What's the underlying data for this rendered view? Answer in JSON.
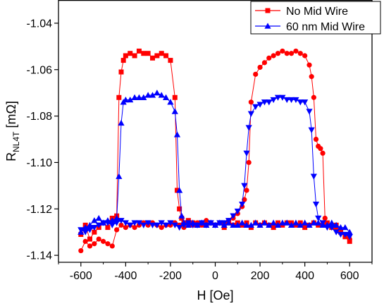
{
  "chart_data": {
    "type": "scatter",
    "xlabel": "H [Oe]",
    "ylabel": {
      "main": "R",
      "sub": "NL4T",
      "unit": " [mΩ]"
    },
    "xlim": [
      -700,
      700
    ],
    "ylim": [
      -1.143,
      -1.03
    ],
    "x_ticks": [
      "-600",
      "-400",
      "-200",
      "0",
      "200",
      "400",
      "600"
    ],
    "y_ticks": [
      "-1.04",
      "-1.06",
      "-1.08",
      "-1.10",
      "-1.12",
      "-1.14"
    ],
    "grid": false,
    "legend_position": "top-right",
    "series": [
      {
        "name": "No Mid Wire",
        "color": "#ff0000",
        "marker": "square",
        "branches": [
          {
            "label": "sweep-up",
            "x": [
              -600,
              -580,
              -560,
              -540,
              -520,
              -500,
              -480,
              -460,
              -440,
              -430,
              -420,
              -410,
              -400,
              -380,
              -360,
              -340,
              -320,
              -300,
              -280,
              -260,
              -240,
              -220,
              -200,
              -180,
              -170,
              -160,
              -150,
              -140,
              -120,
              -100,
              -80,
              -60,
              -40,
              -20,
              0,
              20,
              40,
              60,
              80,
              100,
              120,
              140,
              160,
              180,
              200,
              220,
              240,
              260,
              280,
              300,
              320,
              340,
              360,
              380,
              400,
              420,
              440,
              460,
              480,
              500,
              520,
              540,
              560,
              580,
              600
            ],
            "y": [
              -1.131,
              -1.127,
              -1.133,
              -1.13,
              -1.128,
              -1.126,
              -1.128,
              -1.124,
              -1.123,
              -1.072,
              -1.061,
              -1.056,
              -1.054,
              -1.053,
              -1.054,
              -1.052,
              -1.053,
              -1.053,
              -1.055,
              -1.054,
              -1.053,
              -1.054,
              -1.056,
              -1.072,
              -1.112,
              -1.12,
              -1.124,
              -1.126,
              -1.125,
              -1.126,
              -1.127,
              -1.126,
              -1.127,
              -1.126,
              -1.127,
              -1.126,
              -1.128,
              -1.126,
              -1.127,
              -1.126,
              -1.127,
              -1.126,
              -1.128,
              -1.126,
              -1.127,
              -1.126,
              -1.127,
              -1.128,
              -1.126,
              -1.127,
              -1.126,
              -1.126,
              -1.127,
              -1.126,
              -1.128,
              -1.127,
              -1.126,
              -1.127,
              -1.127,
              -1.126,
              -1.128,
              -1.127,
              -1.13,
              -1.132,
              -1.134
            ]
          },
          {
            "label": "sweep-down",
            "x": [
              600,
              580,
              560,
              540,
              520,
              500,
              490,
              480,
              470,
              460,
              450,
              440,
              430,
              420,
              400,
              380,
              360,
              340,
              320,
              300,
              280,
              260,
              240,
              220,
              200,
              180,
              160,
              150,
              140,
              130,
              120,
              100,
              80,
              60,
              40,
              20,
              0,
              -20,
              -40,
              -60,
              -80,
              -100,
              -120,
              -140,
              -160,
              -180,
              -200,
              -220,
              -240,
              -260,
              -280,
              -300,
              -320,
              -340,
              -360,
              -380,
              -400,
              -420,
              -440,
              -460,
              -480,
              -500,
              -520,
              -540,
              -560,
              -580,
              -600
            ],
            "y": [
              -1.133,
              -1.131,
              -1.13,
              -1.129,
              -1.127,
              -1.127,
              -1.124,
              -1.096,
              -1.094,
              -1.093,
              -1.09,
              -1.072,
              -1.063,
              -1.058,
              -1.054,
              -1.053,
              -1.052,
              -1.053,
              -1.053,
              -1.052,
              -1.053,
              -1.054,
              -1.055,
              -1.057,
              -1.059,
              -1.062,
              -1.074,
              -1.1,
              -1.112,
              -1.116,
              -1.119,
              -1.122,
              -1.124,
              -1.125,
              -1.126,
              -1.126,
              -1.127,
              -1.126,
              -1.125,
              -1.127,
              -1.126,
              -1.127,
              -1.126,
              -1.128,
              -1.127,
              -1.126,
              -1.127,
              -1.127,
              -1.128,
              -1.127,
              -1.126,
              -1.127,
              -1.126,
              -1.127,
              -1.128,
              -1.127,
              -1.128,
              -1.127,
              -1.129,
              -1.136,
              -1.135,
              -1.134,
              -1.133,
              -1.135,
              -1.136,
              -1.134,
              -1.138
            ]
          }
        ]
      },
      {
        "name": "60 nm Mid Wire",
        "color": "#0000ff",
        "marker": "triangle",
        "branches": [
          {
            "label": "sweep-up",
            "x": [
              -600,
              -580,
              -560,
              -540,
              -520,
              -500,
              -480,
              -460,
              -440,
              -430,
              -420,
              -410,
              -400,
              -380,
              -360,
              -340,
              -320,
              -300,
              -280,
              -260,
              -240,
              -220,
              -200,
              -180,
              -170,
              -160,
              -150,
              -140,
              -120,
              -100,
              -80,
              -60,
              -40,
              -20,
              0,
              20,
              40,
              60,
              80,
              100,
              120,
              140,
              160,
              180,
              200,
              220,
              240,
              260,
              280,
              300,
              320,
              340,
              360,
              380,
              400,
              420,
              440,
              460,
              480,
              500,
              520,
              540,
              560,
              580,
              600
            ],
            "y": [
              -1.13,
              -1.128,
              -1.127,
              -1.125,
              -1.124,
              -1.126,
              -1.125,
              -1.125,
              -1.124,
              -1.106,
              -1.083,
              -1.074,
              -1.073,
              -1.073,
              -1.072,
              -1.072,
              -1.072,
              -1.071,
              -1.071,
              -1.07,
              -1.071,
              -1.072,
              -1.074,
              -1.078,
              -1.088,
              -1.112,
              -1.123,
              -1.126,
              -1.127,
              -1.126,
              -1.127,
              -1.126,
              -1.127,
              -1.126,
              -1.127,
              -1.126,
              -1.127,
              -1.126,
              -1.127,
              -1.127,
              -1.126,
              -1.127,
              -1.127,
              -1.126,
              -1.127,
              -1.126,
              -1.127,
              -1.126,
              -1.127,
              -1.126,
              -1.126,
              -1.127,
              -1.126,
              -1.127,
              -1.126,
              -1.127,
              -1.126,
              -1.126,
              -1.127,
              -1.127,
              -1.126,
              -1.127,
              -1.128,
              -1.128,
              -1.13
            ]
          },
          {
            "label": "sweep-down",
            "x": [
              600,
              580,
              560,
              540,
              520,
              500,
              480,
              460,
              450,
              440,
              430,
              420,
              400,
              380,
              360,
              340,
              320,
              300,
              280,
              260,
              240,
              220,
              200,
              180,
              160,
              150,
              140,
              130,
              120,
              100,
              80,
              60,
              40,
              20,
              0,
              -20,
              -40,
              -60,
              -80,
              -100,
              -120,
              -140,
              -160,
              -180,
              -200,
              -220,
              -240,
              -260,
              -280,
              -300,
              -320,
              -340,
              -360,
              -380,
              -400,
              -420,
              -440,
              -460,
              -480,
              -500,
              -520,
              -540,
              -560,
              -580,
              -600
            ],
            "y": [
              -1.132,
              -1.131,
              -1.131,
              -1.13,
              -1.128,
              -1.128,
              -1.126,
              -1.124,
              -1.118,
              -1.106,
              -1.086,
              -1.078,
              -1.074,
              -1.074,
              -1.073,
              -1.073,
              -1.073,
              -1.072,
              -1.072,
              -1.073,
              -1.074,
              -1.074,
              -1.075,
              -1.076,
              -1.079,
              -1.085,
              -1.096,
              -1.11,
              -1.118,
              -1.121,
              -1.123,
              -1.125,
              -1.126,
              -1.126,
              -1.127,
              -1.126,
              -1.127,
              -1.126,
              -1.127,
              -1.127,
              -1.126,
              -1.127,
              -1.128,
              -1.127,
              -1.126,
              -1.127,
              -1.126,
              -1.127,
              -1.127,
              -1.126,
              -1.127,
              -1.126,
              -1.126,
              -1.127,
              -1.126,
              -1.125,
              -1.126,
              -1.127,
              -1.126,
              -1.126,
              -1.127,
              -1.128,
              -1.129,
              -1.13,
              -1.129
            ]
          }
        ]
      }
    ]
  }
}
